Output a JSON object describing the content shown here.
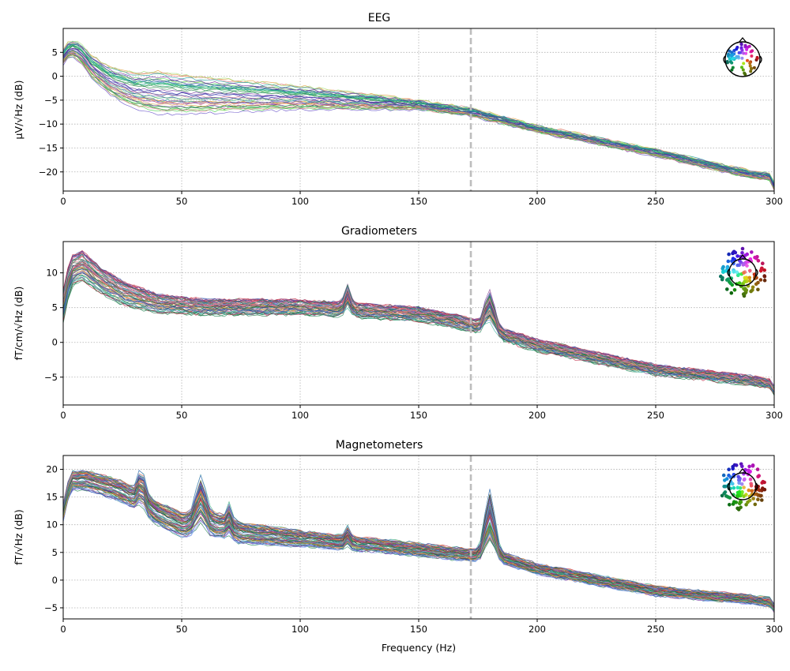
{
  "figure": {
    "xlabel": "Frequency (Hz)"
  },
  "chart_data": [
    {
      "type": "line",
      "title": "EEG",
      "ylabel": "µV/√Hz (dB)",
      "xlim": [
        0,
        300
      ],
      "ylim": [
        -24,
        10
      ],
      "xticks": [
        0,
        50,
        100,
        150,
        200,
        250,
        300
      ],
      "yticks": [
        5,
        0,
        -5,
        -10,
        -15,
        -20
      ],
      "xtick_labels": [
        "0",
        "50",
        "100",
        "150",
        "200",
        "250",
        "300"
      ],
      "ytick_labels": [
        "5",
        "0",
        "−5",
        "−10",
        "−15",
        "−20"
      ],
      "grid": true,
      "vline": 172,
      "n_lines": 40,
      "palette": [
        "#4ad24a",
        "#a6e07a",
        "#e0a040",
        "#3cb478",
        "#2a8a4a",
        "#6650c8",
        "#2a3aa0",
        "#6a2a9a",
        "#e07a8a",
        "#20a0a0"
      ],
      "profile": [
        [
          0,
          4
        ],
        [
          3,
          6
        ],
        [
          7,
          5
        ],
        [
          12,
          2
        ],
        [
          20,
          -1
        ],
        [
          30,
          -3
        ],
        [
          50,
          -3.8
        ],
        [
          100,
          -4.5
        ],
        [
          150,
          -6
        ],
        [
          172,
          -7.5
        ],
        [
          200,
          -11
        ],
        [
          250,
          -16
        ],
        [
          290,
          -20.5
        ],
        [
          298,
          -21
        ],
        [
          300,
          -23
        ]
      ],
      "peaks": [],
      "spread": [
        [
          0,
          1.5
        ],
        [
          40,
          4.5
        ],
        [
          100,
          2.5
        ],
        [
          150,
          1
        ],
        [
          200,
          0.7
        ],
        [
          300,
          0.8
        ]
      ],
      "sensor_icon": "head-eeg-sensor-icon"
    },
    {
      "type": "line",
      "title": "Gradiometers",
      "ylabel": "fT/cm/√Hz (dB)",
      "xlim": [
        0,
        300
      ],
      "ylim": [
        -9,
        14.5
      ],
      "xticks": [
        0,
        50,
        100,
        150,
        200,
        250,
        300
      ],
      "yticks": [
        10,
        5,
        0,
        -5
      ],
      "xtick_labels": [
        "0",
        "50",
        "100",
        "150",
        "200",
        "250",
        "300"
      ],
      "ytick_labels": [
        "10",
        "5",
        "0",
        "−5"
      ],
      "grid": true,
      "vline": 172,
      "n_lines": 60,
      "palette": [
        "#e05a5a",
        "#c0304a",
        "#2a8a5a",
        "#40b0a0",
        "#5a7ad0",
        "#8a4a9a",
        "#e0a050",
        "#1a6a3a",
        "#e090a0",
        "#3050a0"
      ],
      "profile": [
        [
          0,
          5
        ],
        [
          3,
          10
        ],
        [
          8,
          11
        ],
        [
          15,
          9
        ],
        [
          25,
          7
        ],
        [
          40,
          5.5
        ],
        [
          60,
          5
        ],
        [
          100,
          5
        ],
        [
          150,
          4
        ],
        [
          172,
          2.5
        ],
        [
          200,
          -0.5
        ],
        [
          250,
          -4
        ],
        [
          290,
          -5.5
        ],
        [
          298,
          -6
        ],
        [
          300,
          -7
        ]
      ],
      "peaks": [
        [
          120,
          2,
          1.2
        ],
        [
          180,
          3.5,
          2
        ]
      ],
      "spread": [
        [
          0,
          2.5
        ],
        [
          15,
          2
        ],
        [
          50,
          1.2
        ],
        [
          150,
          1
        ],
        [
          300,
          0.6
        ]
      ],
      "sensor_icon": "head-grad-sensor-icon"
    },
    {
      "type": "line",
      "title": "Magnetometers",
      "ylabel": "fT/√Hz (dB)",
      "xlim": [
        0,
        300
      ],
      "ylim": [
        -7,
        22.5
      ],
      "xticks": [
        0,
        50,
        100,
        150,
        200,
        250,
        300
      ],
      "yticks": [
        20,
        15,
        10,
        5,
        0,
        -5
      ],
      "xtick_labels": [
        "0",
        "50",
        "100",
        "150",
        "200",
        "250",
        "300"
      ],
      "ytick_labels": [
        "20",
        "15",
        "10",
        "5",
        "0",
        "−5"
      ],
      "grid": true,
      "vline": 172,
      "n_lines": 70,
      "palette": [
        "#e07a3a",
        "#2a8a5a",
        "#5a7ad0",
        "#80a0f0",
        "#8a2a8a",
        "#c03050",
        "#1a6a3a",
        "#f0a040",
        "#40b080",
        "#3050a0"
      ],
      "profile": [
        [
          0,
          12
        ],
        [
          3,
          18
        ],
        [
          10,
          18
        ],
        [
          25,
          16
        ],
        [
          40,
          12
        ],
        [
          50,
          10
        ],
        [
          65,
          10
        ],
        [
          75,
          8.5
        ],
        [
          100,
          7.5
        ],
        [
          150,
          5.5
        ],
        [
          172,
          4.5
        ],
        [
          185,
          4
        ],
        [
          200,
          2
        ],
        [
          250,
          -2
        ],
        [
          290,
          -3.5
        ],
        [
          298,
          -4
        ],
        [
          300,
          -5
        ]
      ],
      "peaks": [
        [
          33,
          3.5,
          1.5
        ],
        [
          58,
          5,
          2
        ],
        [
          70,
          2,
          1
        ],
        [
          120,
          1.5,
          1
        ],
        [
          180,
          8,
          2
        ]
      ],
      "spread": [
        [
          0,
          1.8
        ],
        [
          60,
          2.5
        ],
        [
          100,
          1.5
        ],
        [
          200,
          1
        ],
        [
          300,
          0.8
        ]
      ],
      "sensor_icon": "head-mag-sensor-icon"
    }
  ]
}
